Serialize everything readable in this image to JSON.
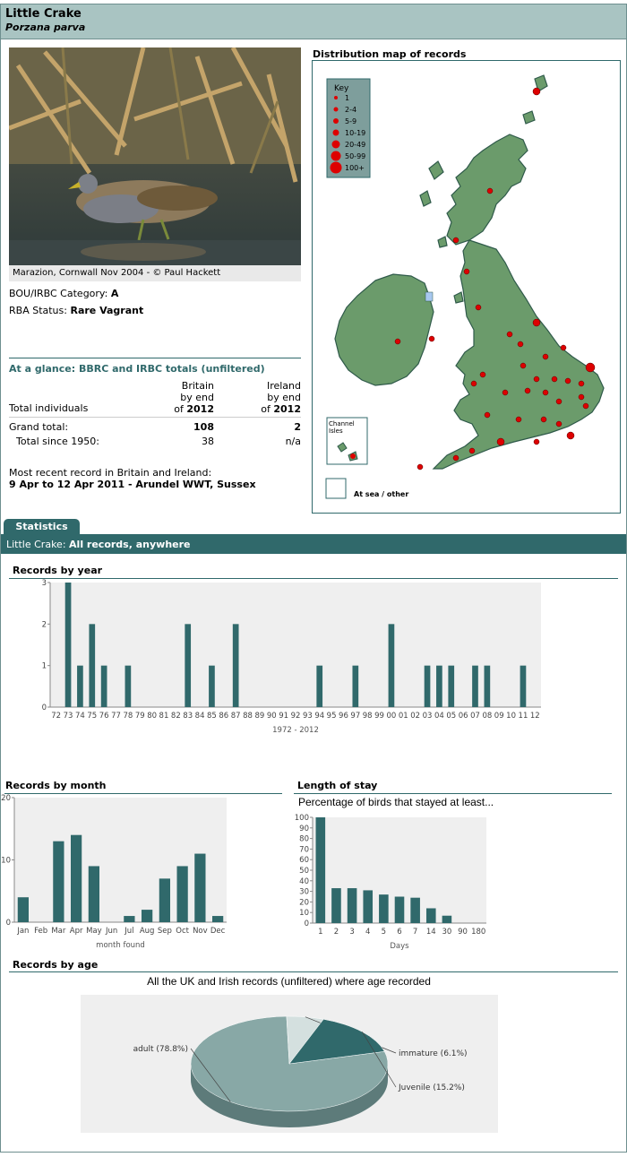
{
  "header": {
    "common_name": "Little Crake",
    "scientific_name": "Porzana parva"
  },
  "photo": {
    "caption": "Marazion, Cornwall Nov 2004 - © Paul Hackett"
  },
  "category": {
    "label": "BOU/IRBC Category:",
    "value": "A"
  },
  "rba": {
    "label": "RBA Status:",
    "value": "Rare Vagrant"
  },
  "glance": {
    "title": "At a glance: BBRC and IRBC totals (unfiltered)",
    "row_label": "Total individuals",
    "col1": [
      "Britain",
      "by end",
      "of "
    ],
    "col1_year": "2012",
    "col2": [
      "Ireland",
      "by end",
      "of "
    ],
    "col2_year": "2012",
    "grand_label": "Grand total:",
    "grand_britain": "108",
    "grand_ireland": "2",
    "since_label": "Total since 1950:",
    "since_britain": "38",
    "since_ireland": "n/a",
    "recent_label": "Most recent record in Britain and Ireland:",
    "recent_value": "9 Apr to 12 Apr 2011 - Arundel WWT, Sussex"
  },
  "map": {
    "title": "Distribution map of records",
    "key_title": "Key",
    "key_items": [
      "1",
      "2-4",
      "5-9",
      "10-19",
      "20-49",
      "50-99",
      "100+"
    ],
    "channel_label": [
      "Channel",
      "Isles"
    ],
    "sea_label": "At sea / other",
    "land_color": "#6b9b6b",
    "dot_color": "#dd0000"
  },
  "tabs": {
    "statistics": "Statistics"
  },
  "subbar": {
    "species": "Little Crake:",
    "scope": "All records, anywhere"
  },
  "sections": {
    "by_year": "Records by year",
    "by_month": "Records by month",
    "stay": "Length of stay",
    "by_age": "Records by age"
  },
  "chart_data": [
    {
      "type": "bar",
      "title": "Records by year",
      "xlabel": "1972 - 2012",
      "categories": [
        "72",
        "73",
        "74",
        "75",
        "76",
        "77",
        "78",
        "79",
        "80",
        "81",
        "82",
        "83",
        "84",
        "85",
        "86",
        "87",
        "88",
        "89",
        "90",
        "91",
        "92",
        "93",
        "94",
        "95",
        "96",
        "97",
        "98",
        "99",
        "00",
        "01",
        "02",
        "03",
        "04",
        "05",
        "06",
        "07",
        "08",
        "09",
        "10",
        "11",
        "12"
      ],
      "values": [
        0,
        3,
        1,
        2,
        1,
        0,
        1,
        0,
        0,
        0,
        0,
        2,
        0,
        1,
        0,
        2,
        0,
        0,
        0,
        0,
        0,
        0,
        1,
        0,
        0,
        1,
        0,
        0,
        2,
        0,
        0,
        1,
        1,
        1,
        0,
        1,
        1,
        0,
        0,
        1,
        0
      ],
      "ylim": [
        0,
        3
      ],
      "yticks": [
        "0",
        "1",
        "2",
        "3"
      ],
      "bar_color": "#30696b"
    },
    {
      "type": "bar",
      "title": "Records by month",
      "xlabel": "month found",
      "categories": [
        "Jan",
        "Feb",
        "Mar",
        "Apr",
        "May",
        "Jun",
        "Jul",
        "Aug",
        "Sep",
        "Oct",
        "Nov",
        "Dec"
      ],
      "values": [
        4,
        0,
        13,
        14,
        9,
        0,
        1,
        2,
        7,
        9,
        11,
        1
      ],
      "ylim": [
        0,
        20
      ],
      "yticks": [
        "0",
        "10",
        "20"
      ],
      "bar_color": "#30696b"
    },
    {
      "type": "bar",
      "title": "Length of stay",
      "subtitle": "Percentage of birds that stayed at least...",
      "xlabel": "Days",
      "categories": [
        "1",
        "2",
        "3",
        "4",
        "5",
        "6",
        "7",
        "14",
        "30",
        "90",
        "180"
      ],
      "values": [
        100,
        33,
        33,
        31,
        27,
        25,
        24,
        14,
        7,
        0,
        0
      ],
      "ylim": [
        0,
        100
      ],
      "yticks": [
        "0",
        "10",
        "20",
        "30",
        "40",
        "50",
        "60",
        "70",
        "80",
        "90",
        "100"
      ],
      "bar_color": "#30696b"
    },
    {
      "type": "pie",
      "title": "Records by age",
      "subtitle": "All the UK and Irish records (unfiltered) where age recorded",
      "slices": [
        {
          "label": "adult (78.8%)",
          "value": 78.8,
          "color": "#88a8a6"
        },
        {
          "label": "immature (6.1%)",
          "value": 6.1,
          "color": "#d4e0df"
        },
        {
          "label": "Juvenile (15.2%)",
          "value": 15.2,
          "color": "#30696b"
        }
      ]
    }
  ]
}
